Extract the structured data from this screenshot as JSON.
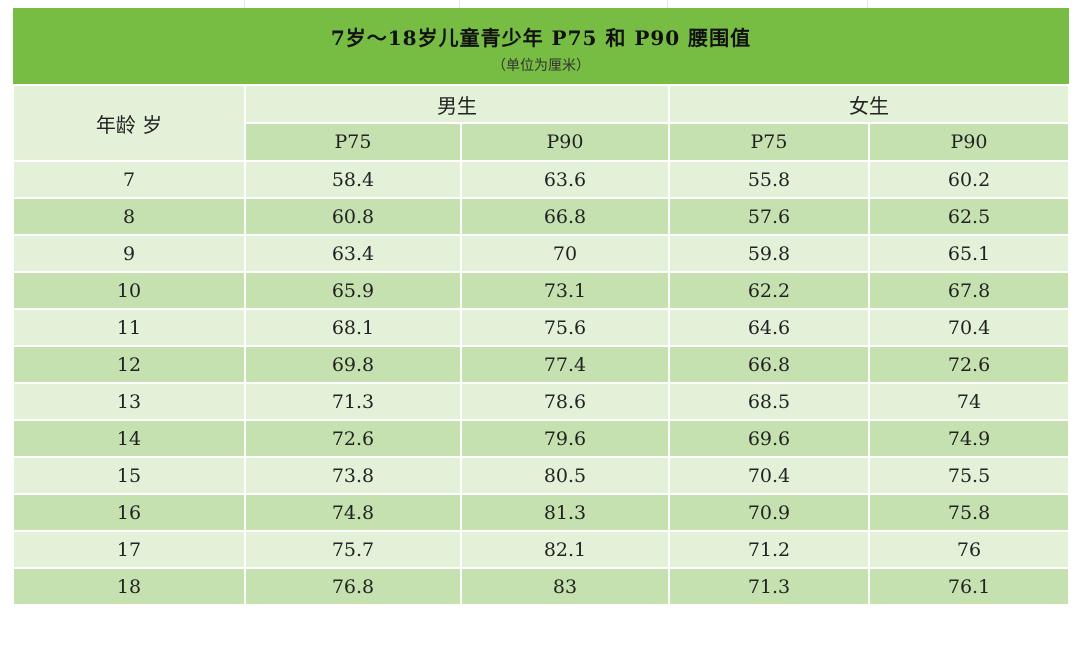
{
  "table": {
    "title": "7岁～18岁儿童青少年  P75  和  P90  腰围值",
    "subtitle": "（单位为厘米）",
    "age_header": "年龄 岁",
    "group_male": "男生",
    "group_female": "女生",
    "sub_headers": [
      "P75",
      "P90",
      "P75",
      "P90"
    ],
    "rows": [
      {
        "age": "7",
        "m75": "58.4",
        "m90": "63.6",
        "f75": "55.8",
        "f90": "60.2"
      },
      {
        "age": "8",
        "m75": "60.8",
        "m90": "66.8",
        "f75": "57.6",
        "f90": "62.5"
      },
      {
        "age": "9",
        "m75": "63.4",
        "m90": "70",
        "f75": "59.8",
        "f90": "65.1"
      },
      {
        "age": "10",
        "m75": "65.9",
        "m90": "73.1",
        "f75": "62.2",
        "f90": "67.8"
      },
      {
        "age": "11",
        "m75": "68.1",
        "m90": "75.6",
        "f75": "64.6",
        "f90": "70.4"
      },
      {
        "age": "12",
        "m75": "69.8",
        "m90": "77.4",
        "f75": "66.8",
        "f90": "72.6"
      },
      {
        "age": "13",
        "m75": "71.3",
        "m90": "78.6",
        "f75": "68.5",
        "f90": "74"
      },
      {
        "age": "14",
        "m75": "72.6",
        "m90": "79.6",
        "f75": "69.6",
        "f90": "74.9"
      },
      {
        "age": "15",
        "m75": "73.8",
        "m90": "80.5",
        "f75": "70.4",
        "f90": "75.5"
      },
      {
        "age": "16",
        "m75": "74.8",
        "m90": "81.3",
        "f75": "70.9",
        "f90": "75.8"
      },
      {
        "age": "17",
        "m75": "75.7",
        "m90": "82.1",
        "f75": "71.2",
        "f90": "76"
      },
      {
        "age": "18",
        "m75": "76.8",
        "m90": "83",
        "f75": "71.3",
        "f90": "76.1"
      }
    ]
  },
  "colors": {
    "title_bg": "#77bc43",
    "light_row": "#e4f1d9",
    "dark_row": "#c5e1b0"
  }
}
